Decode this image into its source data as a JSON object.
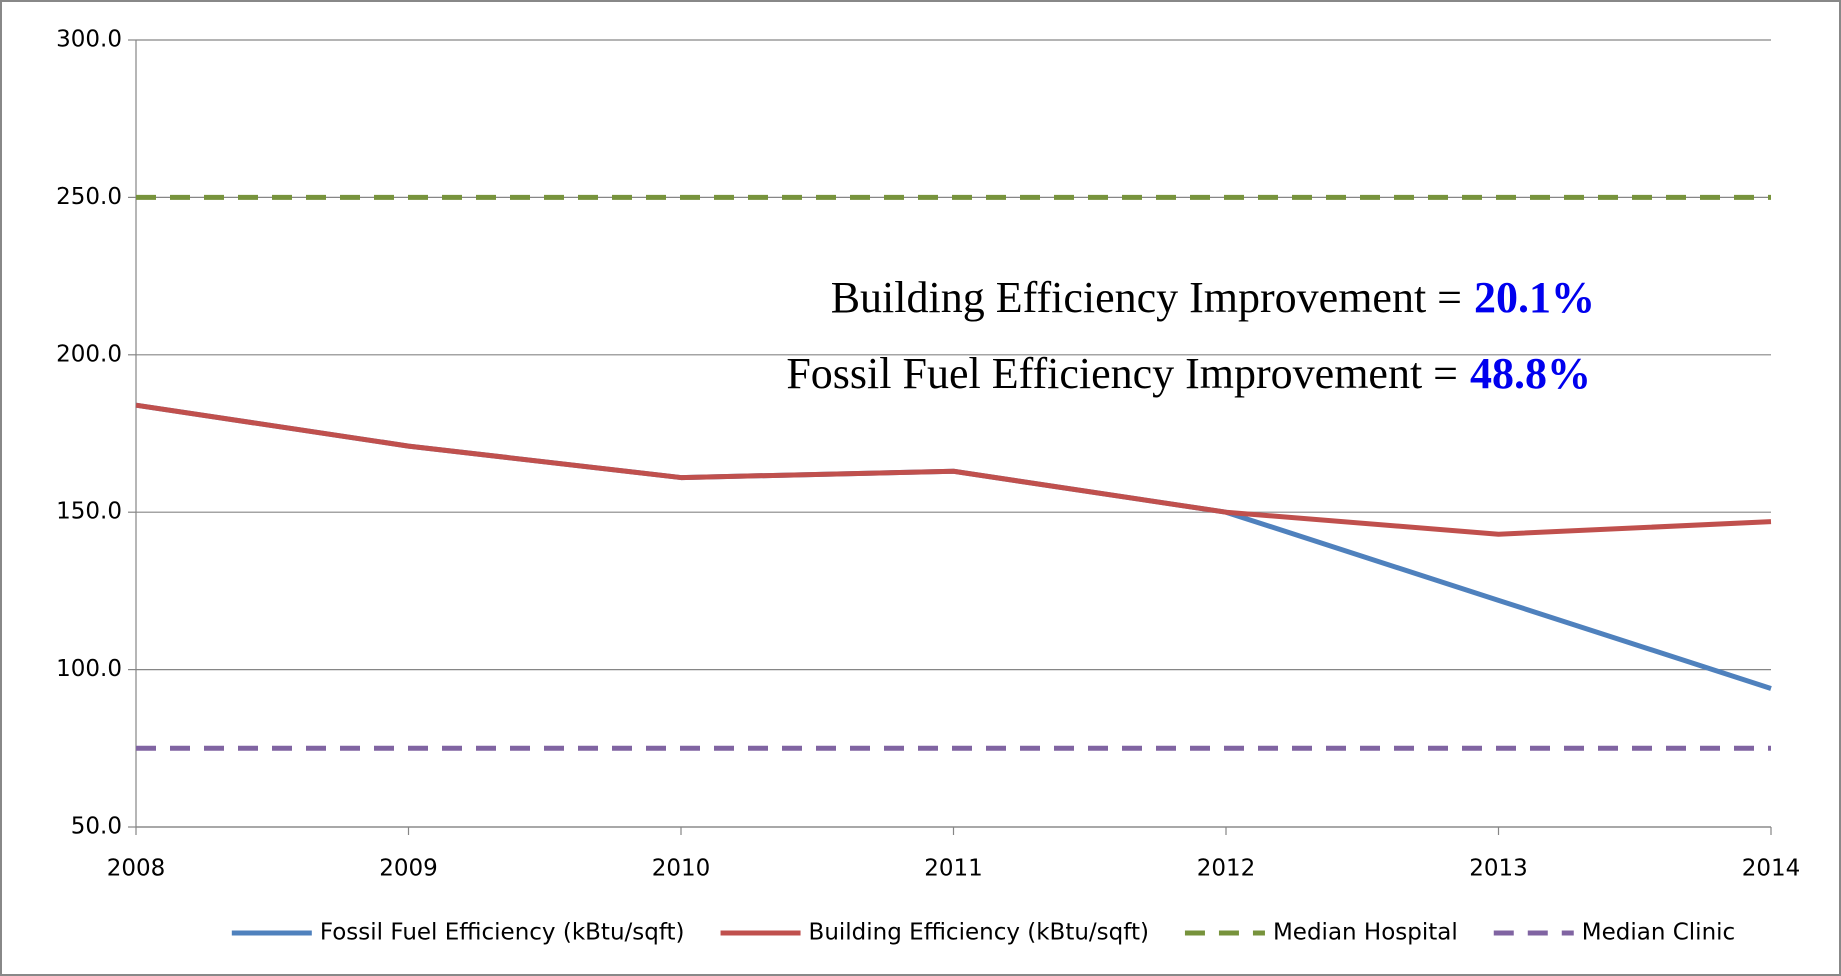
{
  "chart_data": {
    "type": "line",
    "x": [
      2008,
      2009,
      2010,
      2011,
      2012,
      2013,
      2014
    ],
    "xlim": [
      2008,
      2014
    ],
    "xticks": [
      2008,
      2009,
      2010,
      2011,
      2012,
      2013,
      2014
    ],
    "ylim": [
      50,
      300
    ],
    "yticks": [
      {
        "value": 50,
        "label": "50.0"
      },
      {
        "value": 100,
        "label": "100.0"
      },
      {
        "value": 150,
        "label": "150.0"
      },
      {
        "value": 200,
        "label": "200.0"
      },
      {
        "value": 250,
        "label": "250.0"
      },
      {
        "value": 300,
        "label": "300.0"
      }
    ],
    "grid": true,
    "legend": "bottom",
    "series": [
      {
        "name": "Fossil Fuel Efficiency (kBtu/sqft)",
        "color": "#4f81bd",
        "dash": false,
        "values": [
          184,
          171,
          161,
          163,
          150,
          122,
          94
        ]
      },
      {
        "name": "Building Efficiency (kBtu/sqft)",
        "color": "#c0504d",
        "dash": false,
        "values": [
          184,
          171,
          161,
          163,
          150,
          143,
          147
        ]
      },
      {
        "name": "Median Hospital",
        "color": "#77933c",
        "dash": true,
        "values": [
          250,
          250,
          250,
          250,
          250,
          250,
          250
        ]
      },
      {
        "name": "Median Clinic",
        "color": "#8064a2",
        "dash": true,
        "values": [
          75,
          75,
          75,
          75,
          75,
          75,
          75
        ]
      }
    ],
    "annotations": [
      {
        "text": "Building Efficiency Improvement =",
        "highlight": "20.1%"
      },
      {
        "text": "Fossil Fuel Efficiency Improvement =",
        "highlight": "48.8%"
      }
    ]
  }
}
